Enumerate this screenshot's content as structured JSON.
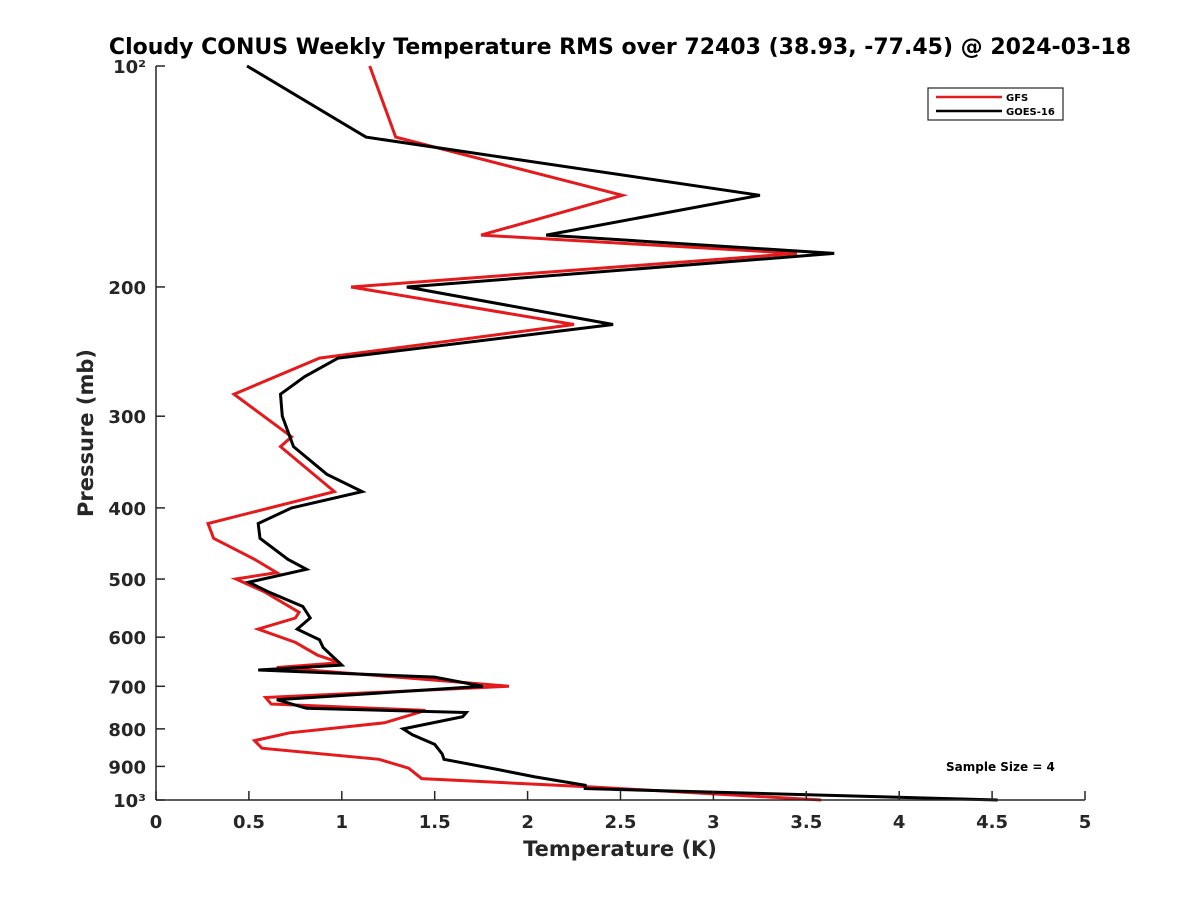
{
  "chart_data": {
    "type": "line",
    "title": "Cloudy CONUS Weekly Temperature RMS over 72403 (38.93, -77.45) @ 2024-03-18",
    "xlabel": "Temperature (K)",
    "ylabel": "Pressure (mb)",
    "xlim": [
      0,
      5
    ],
    "ylim": [
      100,
      1000
    ],
    "y_scale": "log",
    "y_reversed": true,
    "x_ticks": [
      0,
      0.5,
      1,
      1.5,
      2,
      2.5,
      3,
      3.5,
      4,
      4.5,
      5
    ],
    "x_tick_labels": [
      "0",
      "0.5",
      "1",
      "1.5",
      "2",
      "2.5",
      "3",
      "3.5",
      "4",
      "4.5",
      "5"
    ],
    "y_ticks": [
      100,
      200,
      300,
      400,
      500,
      600,
      700,
      800,
      900,
      1000
    ],
    "y_tick_labels": [
      "10²",
      "200",
      "300",
      "400",
      "500",
      "600",
      "700",
      "800",
      "900",
      "10³"
    ],
    "grid": false,
    "legend_position": "top-right",
    "annotation": "Sample Size = 4",
    "series": [
      {
        "name": "GFS",
        "color": "#e41a1c",
        "points": [
          [
            1.15,
            100
          ],
          [
            1.29,
            125
          ],
          [
            2.51,
            150
          ],
          [
            1.75,
            170
          ],
          [
            3.45,
            180
          ],
          [
            1.05,
            200
          ],
          [
            2.25,
            225
          ],
          [
            0.88,
            250
          ],
          [
            0.42,
            280
          ],
          [
            0.73,
            320
          ],
          [
            0.67,
            330
          ],
          [
            0.96,
            380
          ],
          [
            0.28,
            420
          ],
          [
            0.31,
            440
          ],
          [
            0.53,
            470
          ],
          [
            0.65,
            490
          ],
          [
            0.43,
            500
          ],
          [
            0.58,
            520
          ],
          [
            0.77,
            555
          ],
          [
            0.75,
            565
          ],
          [
            0.55,
            585
          ],
          [
            0.75,
            610
          ],
          [
            0.87,
            635
          ],
          [
            0.99,
            650
          ],
          [
            0.65,
            660
          ],
          [
            1.45,
            685
          ],
          [
            1.9,
            700
          ],
          [
            0.59,
            725
          ],
          [
            0.62,
            740
          ],
          [
            1.45,
            755
          ],
          [
            1.23,
            785
          ],
          [
            0.72,
            810
          ],
          [
            0.53,
            830
          ],
          [
            0.57,
            850
          ],
          [
            1.2,
            880
          ],
          [
            1.36,
            905
          ],
          [
            1.43,
            935
          ],
          [
            2.35,
            960
          ],
          [
            3.58,
            1000
          ]
        ]
      },
      {
        "name": "GOES-16",
        "color": "#000000",
        "points": [
          [
            0.49,
            100
          ],
          [
            1.13,
            125
          ],
          [
            3.25,
            150
          ],
          [
            2.1,
            170
          ],
          [
            3.65,
            180
          ],
          [
            1.35,
            200
          ],
          [
            2.46,
            225
          ],
          [
            0.98,
            250
          ],
          [
            0.8,
            265
          ],
          [
            0.67,
            280
          ],
          [
            0.68,
            300
          ],
          [
            0.74,
            330
          ],
          [
            0.92,
            360
          ],
          [
            1.11,
            380
          ],
          [
            0.73,
            400
          ],
          [
            0.55,
            420
          ],
          [
            0.56,
            440
          ],
          [
            0.71,
            470
          ],
          [
            0.81,
            485
          ],
          [
            0.5,
            505
          ],
          [
            0.6,
            520
          ],
          [
            0.79,
            545
          ],
          [
            0.83,
            565
          ],
          [
            0.76,
            585
          ],
          [
            0.88,
            605
          ],
          [
            0.9,
            620
          ],
          [
            1.0,
            655
          ],
          [
            0.55,
            665
          ],
          [
            1.5,
            680
          ],
          [
            1.76,
            700
          ],
          [
            0.65,
            730
          ],
          [
            0.81,
            750
          ],
          [
            1.67,
            760
          ],
          [
            1.65,
            770
          ],
          [
            1.33,
            800
          ],
          [
            1.38,
            815
          ],
          [
            1.5,
            840
          ],
          [
            1.54,
            865
          ],
          [
            1.55,
            880
          ],
          [
            1.85,
            910
          ],
          [
            2.04,
            930
          ],
          [
            2.31,
            955
          ],
          [
            2.31,
            965
          ],
          [
            4.53,
            1000
          ]
        ]
      }
    ]
  }
}
